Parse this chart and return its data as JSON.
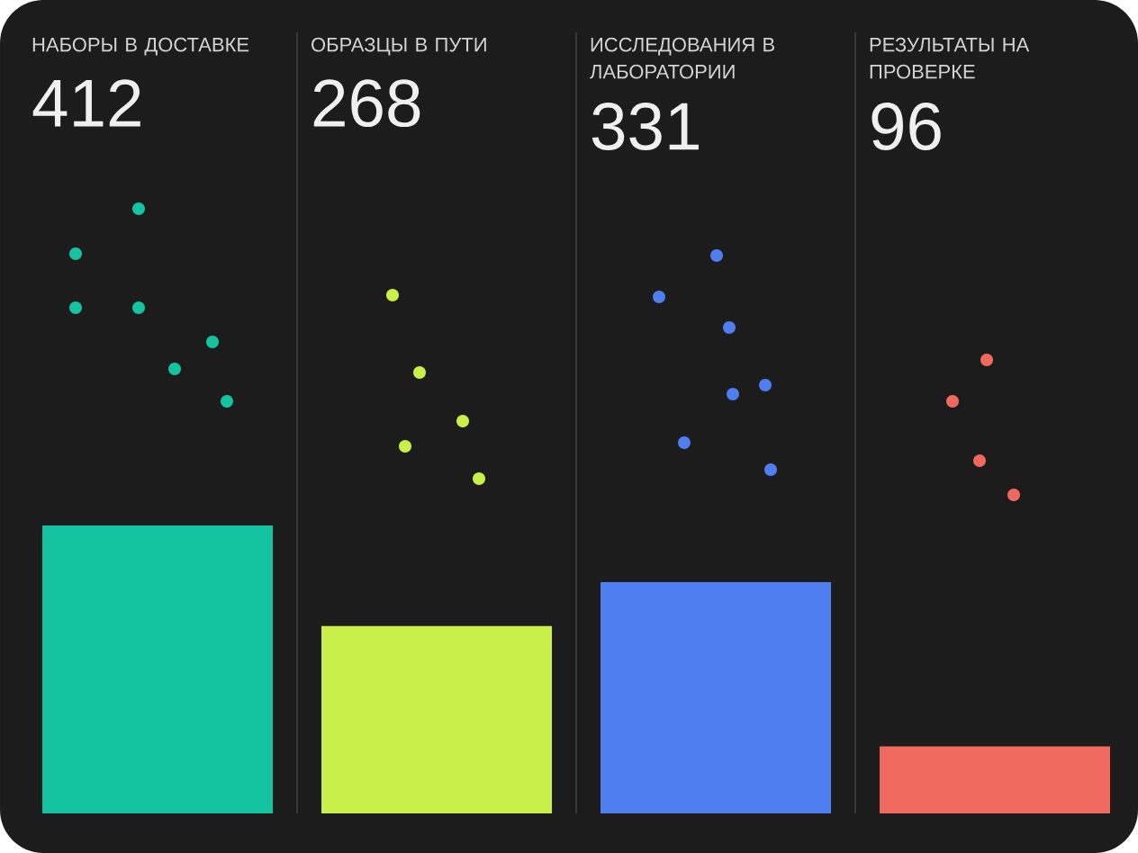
{
  "chart_data": {
    "type": "bar",
    "categories": [
      "НАБОРЫ В ДОСТАВКЕ",
      "ОБРАЗЦЫ В ПУТИ",
      "ИССЛЕДОВАНИЯ В ЛАБОРАТОРИИ",
      "РЕЗУЛЬТАТЫ НА ПРОВЕРКЕ"
    ],
    "values": [
      412,
      268,
      331,
      96
    ],
    "colors": [
      "#14c3a0",
      "#c8ef4a",
      "#4f7ef0",
      "#f0695e"
    ],
    "data_labels": true
  }
}
